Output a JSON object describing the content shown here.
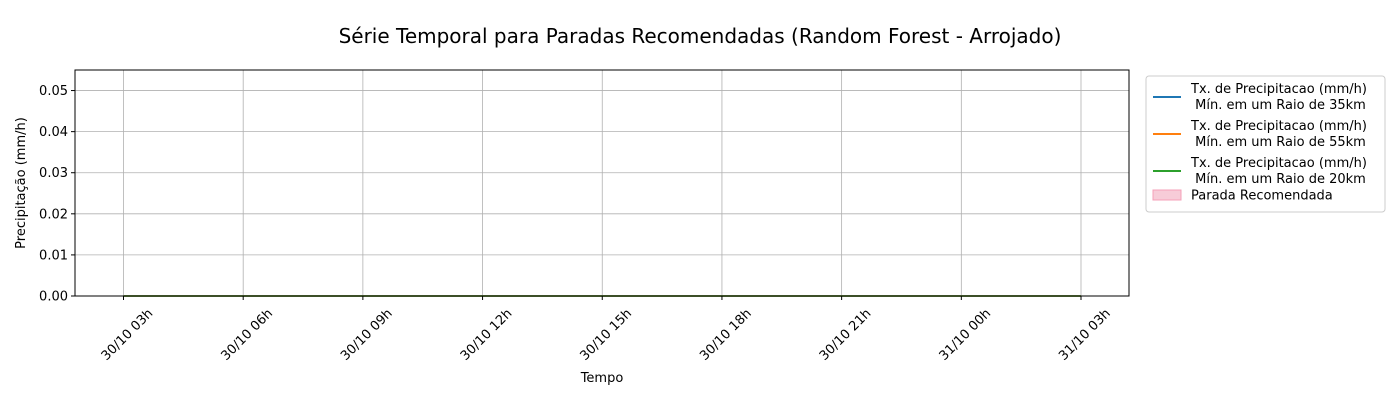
{
  "chart_data": {
    "type": "line",
    "title": "Série Temporal para Paradas Recomendadas (Random Forest - Arrojado)",
    "xlabel": "Tempo",
    "ylabel": "Precipitação (mm/h)",
    "ylim": [
      0,
      0.055
    ],
    "y_ticks": [
      0.0,
      0.01,
      0.02,
      0.03,
      0.04,
      0.05
    ],
    "y_tick_labels": [
      "0.00",
      "0.01",
      "0.02",
      "0.03",
      "0.04",
      "0.05"
    ],
    "x_tick_labels": [
      "30/10 03h",
      "30/10 06h",
      "30/10 09h",
      "30/10 12h",
      "30/10 15h",
      "30/10 18h",
      "30/10 21h",
      "31/10 00h",
      "31/10 03h"
    ],
    "x": [
      "30/10 03h",
      "30/10 06h",
      "30/10 09h",
      "30/10 12h",
      "30/10 15h",
      "30/10 18h",
      "30/10 21h",
      "31/10 00h",
      "31/10 03h"
    ],
    "grid": true,
    "legend_position": "outside-right",
    "series": [
      {
        "name": "Tx. de Precipitacao (mm/h)\n Mín. em um Raio de 35km",
        "color": "#1f77b4",
        "values": [
          0,
          0,
          0,
          0,
          0,
          0,
          0,
          0,
          0
        ]
      },
      {
        "name": "Tx. de Precipitacao (mm/h)\n Mín. em um Raio de 55km",
        "color": "#ff7f0e",
        "values": [
          0,
          0,
          0,
          0,
          0,
          0,
          0,
          0,
          0
        ]
      },
      {
        "name": "Tx. de Precipitacao (mm/h)\n Mín. em um Raio de 20km",
        "color": "#2ca02c",
        "values": [
          0,
          0,
          0,
          0,
          0,
          0,
          0,
          0,
          0
        ]
      }
    ],
    "shaded_legend": {
      "name": "Parada Recomendada",
      "color": "#f7ccd8",
      "border_color": "#f4a0b8"
    },
    "recommended_stops": []
  }
}
